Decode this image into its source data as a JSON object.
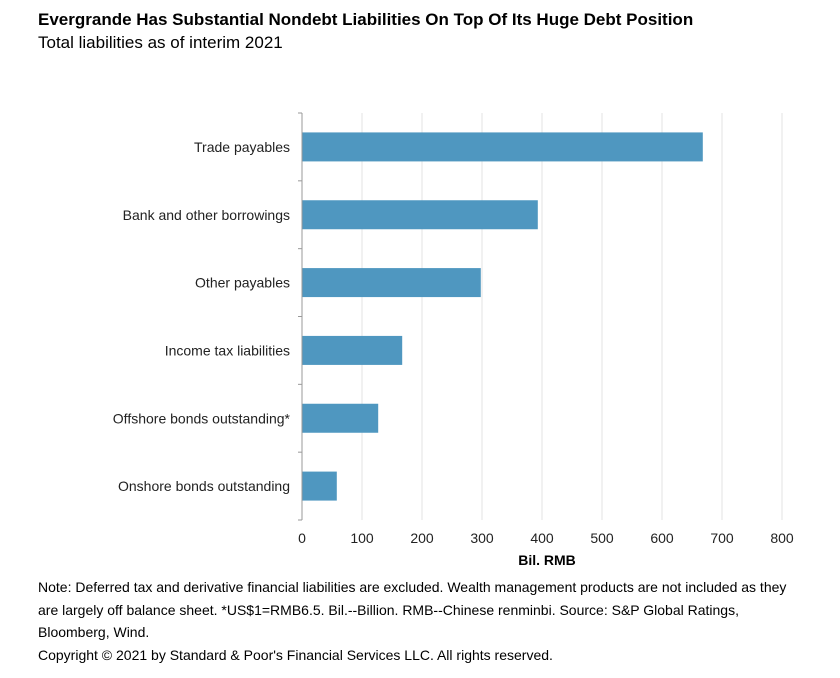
{
  "header": {
    "title": "Evergrande Has Substantial Nondebt Liabilities On Top Of Its Huge Debt Position",
    "subtitle": "Total liabilities as of interim 2021"
  },
  "chart_data": {
    "type": "bar",
    "orientation": "horizontal",
    "categories": [
      "Trade payables",
      "Bank and other borrowings",
      "Other payables",
      "Income tax liabilities",
      "Offshore bonds outstanding*",
      "Onshore bonds outstanding"
    ],
    "values": [
      668,
      393,
      298,
      167,
      127,
      58
    ],
    "xlabel": "Bil. RMB",
    "ylabel": "",
    "xlim": [
      0,
      800
    ],
    "xticks": [
      "0",
      "100",
      "200",
      "300",
      "400",
      "500",
      "600",
      "700",
      "800"
    ],
    "grid": "vertical",
    "bar_color": "#4f97c0"
  },
  "footer": {
    "note": "Note: Deferred tax and derivative financial liabilities are excluded. Wealth management products are not included as they are largely off balance sheet. *US$1=RMB6.5. Bil.--Billion. RMB--Chinese renminbi. Source: S&P Global Ratings, Bloomberg, Wind.",
    "copyright": "Copyright © 2021 by Standard & Poor's Financial Services LLC. All rights reserved."
  }
}
